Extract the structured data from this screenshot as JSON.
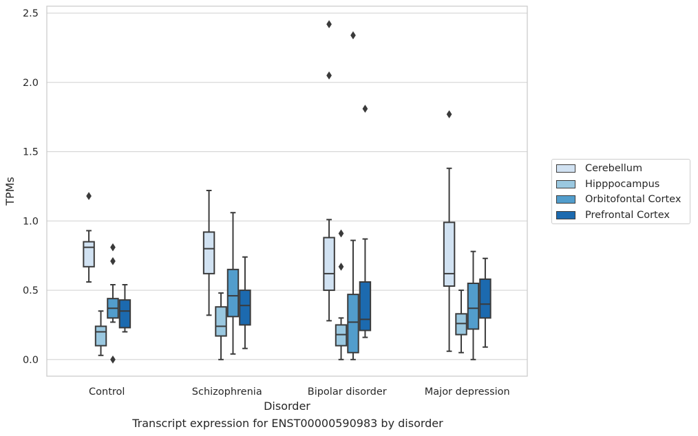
{
  "chart_data": {
    "type": "box",
    "xlabel": "Disorder",
    "ylabel": "TPMs",
    "caption": "Transcript expression for ENST00000590983 by disorder",
    "categories": [
      "Control",
      "Schizophrenia",
      "Bipolar disorder",
      "Major depression"
    ],
    "ylim": [
      -0.12,
      2.55
    ],
    "yticks": [
      "0.0",
      "0.5",
      "1.0",
      "1.5",
      "2.0",
      "2.5"
    ],
    "grid": "horizontal",
    "legend_position": "right",
    "series": [
      {
        "name": "Cerebellum",
        "color": "#d1e2f2",
        "boxes": [
          {
            "whislo": 0.56,
            "q1": 0.67,
            "med": 0.81,
            "q3": 0.85,
            "whishi": 0.93,
            "fliers": [
              1.18
            ]
          },
          {
            "whislo": 0.32,
            "q1": 0.62,
            "med": 0.8,
            "q3": 0.92,
            "whishi": 1.22,
            "fliers": []
          },
          {
            "whislo": 0.28,
            "q1": 0.5,
            "med": 0.62,
            "q3": 0.88,
            "whishi": 1.01,
            "fliers": [
              2.05,
              2.42
            ]
          },
          {
            "whislo": 0.06,
            "q1": 0.53,
            "med": 0.62,
            "q3": 0.99,
            "whishi": 1.38,
            "fliers": [
              1.77
            ]
          }
        ]
      },
      {
        "name": "Hipppocampus",
        "color": "#9ac8e0",
        "boxes": [
          {
            "whislo": 0.03,
            "q1": 0.1,
            "med": 0.2,
            "q3": 0.24,
            "whishi": 0.35,
            "fliers": []
          },
          {
            "whislo": 0.0,
            "q1": 0.17,
            "med": 0.24,
            "q3": 0.38,
            "whishi": 0.48,
            "fliers": []
          },
          {
            "whislo": 0.0,
            "q1": 0.1,
            "med": 0.18,
            "q3": 0.25,
            "whishi": 0.3,
            "fliers": [
              0.67,
              0.91
            ]
          },
          {
            "whislo": 0.05,
            "q1": 0.18,
            "med": 0.26,
            "q3": 0.33,
            "whishi": 0.5,
            "fliers": []
          }
        ]
      },
      {
        "name": "Orbitofontal Cortex",
        "color": "#529dcc",
        "boxes": [
          {
            "whislo": 0.27,
            "q1": 0.3,
            "med": 0.37,
            "q3": 0.44,
            "whishi": 0.54,
            "fliers": [
              0.0,
              0.71,
              0.81
            ]
          },
          {
            "whislo": 0.04,
            "q1": 0.31,
            "med": 0.46,
            "q3": 0.65,
            "whishi": 1.06,
            "fliers": []
          },
          {
            "whislo": 0.0,
            "q1": 0.05,
            "med": 0.27,
            "q3": 0.47,
            "whishi": 0.86,
            "fliers": [
              2.34
            ]
          },
          {
            "whislo": 0.0,
            "q1": 0.22,
            "med": 0.37,
            "q3": 0.55,
            "whishi": 0.78,
            "fliers": []
          }
        ]
      },
      {
        "name": "Prefrontal Cortex",
        "color": "#1c6aaf",
        "boxes": [
          {
            "whislo": 0.2,
            "q1": 0.23,
            "med": 0.35,
            "q3": 0.43,
            "whishi": 0.54,
            "fliers": []
          },
          {
            "whislo": 0.08,
            "q1": 0.25,
            "med": 0.39,
            "q3": 0.5,
            "whishi": 0.74,
            "fliers": []
          },
          {
            "whislo": 0.16,
            "q1": 0.21,
            "med": 0.29,
            "q3": 0.56,
            "whishi": 0.87,
            "fliers": [
              1.81
            ]
          },
          {
            "whislo": 0.09,
            "q1": 0.3,
            "med": 0.4,
            "q3": 0.58,
            "whishi": 0.73,
            "fliers": []
          }
        ]
      }
    ]
  }
}
